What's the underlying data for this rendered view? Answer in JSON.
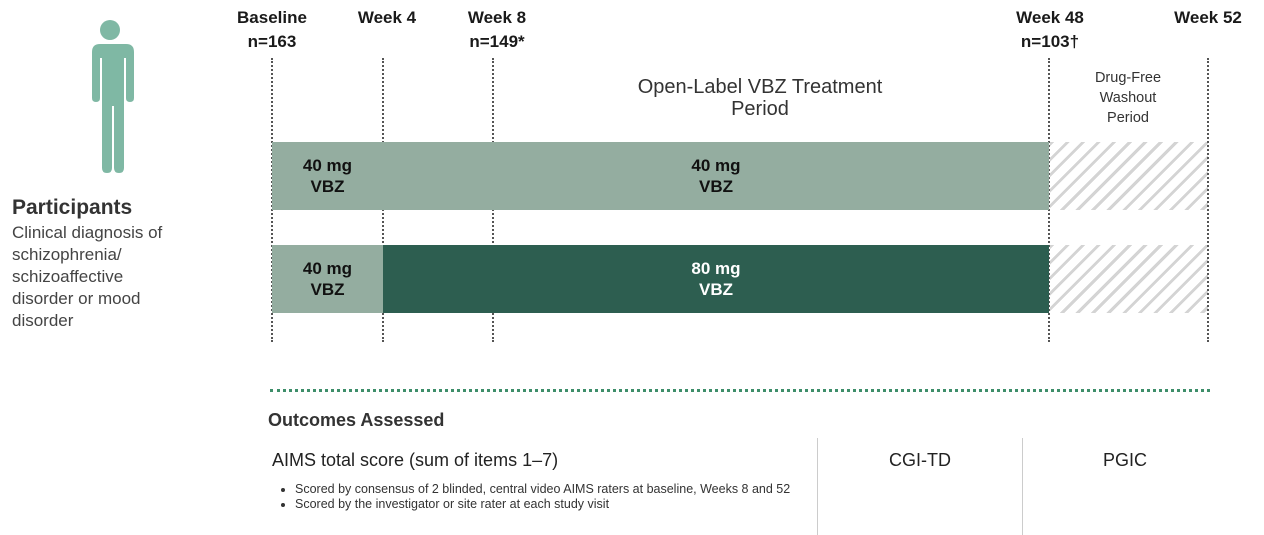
{
  "timepoints": [
    {
      "label": "Baseline",
      "n": "n=163"
    },
    {
      "label": "Week 4"
    },
    {
      "label": "Week 8",
      "n": "n=149*"
    },
    {
      "label": "Week 48",
      "n": "n=103†"
    },
    {
      "label": "Week 52"
    }
  ],
  "periods": {
    "treatment": [
      "Open-Label VBZ Treatment",
      "Period"
    ],
    "washout": [
      "Drug-Free",
      "Washout",
      "Period"
    ]
  },
  "arms": [
    {
      "segments": [
        {
          "lines": [
            "40 mg",
            "VBZ"
          ]
        },
        {
          "lines": [
            "40 mg",
            "VBZ"
          ]
        }
      ]
    },
    {
      "segments": [
        {
          "lines": [
            "40 mg",
            "VBZ"
          ]
        },
        {
          "lines": [
            "80 mg",
            "VBZ"
          ]
        }
      ]
    }
  ],
  "participants": {
    "title": "Participants",
    "description": [
      "Clinical diagnosis of",
      "schizophrenia/",
      "schizoaffective",
      "disorder or mood",
      "disorder"
    ]
  },
  "outcomes": {
    "title": "Outcomes Assessed",
    "columns": [
      {
        "title": "AIMS total score (sum of items 1–7)",
        "bullets": [
          "Scored by consensus of 2 blinded, central video AIMS raters at baseline, Weeks 8 and 52",
          "Scored by the investigator or site rater at each study visit"
        ]
      },
      {
        "title": "CGI-TD"
      },
      {
        "title": "PGIC"
      }
    ]
  }
}
